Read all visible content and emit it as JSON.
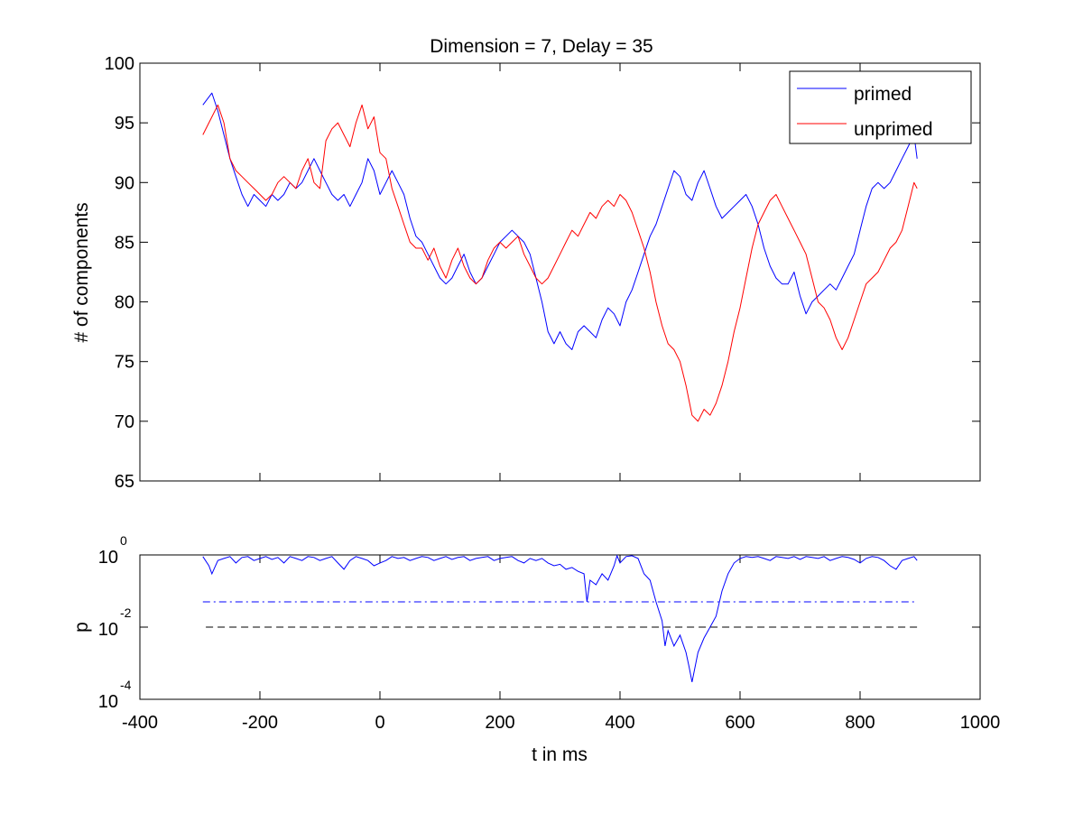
{
  "chart_data": [
    {
      "panel": "top",
      "type": "line",
      "title": "Dimension  = 7, Delay = 35",
      "xlabel": "",
      "ylabel": "# of components",
      "xlim": [
        -400,
        1000
      ],
      "ylim": [
        65,
        100
      ],
      "xticks": [
        -400,
        -200,
        0,
        200,
        400,
        600,
        800,
        1000
      ],
      "xtick_labels_visible": false,
      "yticks": [
        65,
        70,
        75,
        80,
        85,
        90,
        95,
        100
      ],
      "ytick_labels": [
        "65",
        "70",
        "75",
        "80",
        "85",
        "90",
        "95",
        "100"
      ],
      "grid": false,
      "legend_position": "top-right",
      "series": [
        {
          "name": "primed",
          "color": "#0000ff",
          "x": [
            -295,
            -280,
            -270,
            -260,
            -250,
            -240,
            -230,
            -220,
            -210,
            -200,
            -190,
            -180,
            -170,
            -160,
            -150,
            -140,
            -130,
            -120,
            -110,
            -100,
            -90,
            -80,
            -70,
            -60,
            -50,
            -40,
            -30,
            -20,
            -10,
            0,
            10,
            20,
            30,
            40,
            50,
            60,
            70,
            80,
            90,
            100,
            110,
            120,
            130,
            140,
            150,
            160,
            170,
            180,
            190,
            200,
            210,
            220,
            230,
            240,
            250,
            260,
            270,
            280,
            290,
            300,
            310,
            320,
            330,
            340,
            350,
            360,
            370,
            380,
            390,
            400,
            410,
            420,
            430,
            440,
            450,
            460,
            470,
            480,
            490,
            500,
            510,
            520,
            530,
            540,
            550,
            560,
            570,
            580,
            590,
            600,
            610,
            620,
            630,
            640,
            650,
            660,
            670,
            680,
            690,
            700,
            710,
            720,
            730,
            740,
            750,
            760,
            770,
            780,
            790,
            800,
            810,
            820,
            830,
            840,
            850,
            860,
            870,
            880,
            890,
            895
          ],
          "y": [
            96.5,
            97.5,
            96,
            94,
            92,
            90.5,
            89,
            88,
            89,
            88.5,
            88,
            89,
            88.5,
            89,
            90,
            89.5,
            90,
            91,
            92,
            91,
            90,
            89,
            88.5,
            89,
            88,
            89,
            90,
            92,
            91,
            89,
            90,
            91,
            90,
            89,
            87,
            85.5,
            85,
            84,
            83,
            82,
            81.5,
            82,
            83,
            84,
            82.5,
            81.5,
            82,
            83,
            84,
            85,
            85.5,
            86,
            85.5,
            85,
            84,
            82,
            80,
            77.5,
            76.5,
            77.5,
            76.5,
            76,
            77.5,
            78,
            77.5,
            77,
            78.5,
            79.5,
            79,
            78,
            80,
            81,
            82.5,
            84,
            85.5,
            86.5,
            88,
            89.5,
            91,
            90.5,
            89,
            88.5,
            90,
            91,
            89.5,
            88,
            87,
            87.5,
            88,
            88.5,
            89,
            88,
            86.5,
            84.5,
            83,
            82,
            81.5,
            81.5,
            82.5,
            80.5,
            79,
            80,
            80.5,
            81,
            81.5,
            81,
            82,
            83,
            84,
            86,
            88,
            89.5,
            90,
            89.5,
            90,
            91,
            92,
            93,
            94,
            92
          ]
        },
        {
          "name": "unprimed",
          "color": "#ff0000",
          "x": [
            -295,
            -280,
            -270,
            -260,
            -250,
            -240,
            -230,
            -220,
            -210,
            -200,
            -190,
            -180,
            -170,
            -160,
            -150,
            -140,
            -130,
            -120,
            -110,
            -100,
            -90,
            -80,
            -70,
            -60,
            -50,
            -40,
            -30,
            -20,
            -10,
            0,
            10,
            20,
            30,
            40,
            50,
            60,
            70,
            80,
            90,
            100,
            110,
            120,
            130,
            140,
            150,
            160,
            170,
            180,
            190,
            200,
            210,
            220,
            230,
            240,
            250,
            260,
            270,
            280,
            290,
            300,
            310,
            320,
            330,
            340,
            350,
            360,
            370,
            380,
            390,
            400,
            410,
            420,
            430,
            440,
            450,
            460,
            470,
            480,
            490,
            500,
            510,
            520,
            530,
            540,
            550,
            560,
            570,
            580,
            590,
            600,
            610,
            620,
            630,
            640,
            650,
            660,
            670,
            680,
            690,
            700,
            710,
            720,
            730,
            740,
            750,
            760,
            770,
            780,
            790,
            800,
            810,
            820,
            830,
            840,
            850,
            860,
            870,
            880,
            890,
            895
          ],
          "y": [
            94,
            95.5,
            96.5,
            95,
            92,
            91,
            90.5,
            90,
            89.5,
            89,
            88.5,
            89,
            90,
            90.5,
            90,
            89.5,
            91,
            92,
            90,
            89.5,
            93.5,
            94.5,
            95,
            94,
            93,
            95,
            96.5,
            94.5,
            95.5,
            92.5,
            92,
            89.5,
            88,
            86.5,
            85,
            84.5,
            84.5,
            83.5,
            84.5,
            83,
            82,
            83.5,
            84.5,
            83,
            82,
            81.5,
            82,
            83.5,
            84.5,
            85,
            84.5,
            85,
            85.5,
            84,
            83,
            82,
            81.5,
            82,
            83,
            84,
            85,
            86,
            85.5,
            86.5,
            87.5,
            87,
            88,
            88.5,
            88,
            89,
            88.5,
            87.5,
            86,
            84.5,
            82.5,
            80,
            78,
            76.5,
            76,
            75,
            73,
            70.5,
            70,
            71,
            70.5,
            71.5,
            73,
            75,
            77.5,
            79.5,
            82,
            84.5,
            86.5,
            87.5,
            88.5,
            89,
            88,
            87,
            86,
            85,
            84,
            82,
            80,
            79.5,
            78.5,
            77,
            76,
            77,
            78.5,
            80,
            81.5,
            82,
            82.5,
            83.5,
            84.5,
            85,
            86,
            88,
            90,
            89.5
          ]
        }
      ]
    },
    {
      "panel": "bottom",
      "type": "line",
      "title": "",
      "xlabel": "t in ms",
      "ylabel": "p",
      "yscale": "log",
      "xlim": [
        -400,
        1000
      ],
      "ylim": [
        0.0001,
        1
      ],
      "xticks": [
        -400,
        -200,
        0,
        200,
        400,
        600,
        800,
        1000
      ],
      "xtick_labels": [
        "-400",
        "-200",
        "0",
        "200",
        "400",
        "600",
        "800",
        "1000"
      ],
      "yticks": [
        0.0001,
        0.01,
        1
      ],
      "ytick_labels": [
        {
          "base": "10",
          "exp": "-4"
        },
        {
          "base": "10",
          "exp": "-2"
        },
        {
          "base": "10",
          "exp": "0"
        }
      ],
      "grid": false,
      "series": [
        {
          "color": "#0000ff",
          "x": [
            -295,
            -285,
            -280,
            -270,
            -260,
            -250,
            -240,
            -230,
            -220,
            -210,
            -200,
            -190,
            -180,
            -170,
            -160,
            -150,
            -140,
            -130,
            -120,
            -110,
            -100,
            -90,
            -80,
            -70,
            -60,
            -50,
            -40,
            -30,
            -20,
            -10,
            0,
            10,
            20,
            30,
            40,
            50,
            60,
            70,
            80,
            90,
            100,
            110,
            120,
            130,
            140,
            150,
            160,
            170,
            180,
            190,
            200,
            210,
            220,
            230,
            240,
            250,
            260,
            270,
            280,
            290,
            300,
            310,
            320,
            330,
            340,
            345,
            350,
            360,
            370,
            380,
            390,
            395,
            400,
            410,
            420,
            430,
            440,
            450,
            460,
            470,
            475,
            480,
            490,
            500,
            510,
            515,
            520,
            530,
            540,
            550,
            560,
            570,
            580,
            590,
            600,
            610,
            620,
            630,
            640,
            650,
            660,
            670,
            680,
            690,
            700,
            710,
            720,
            730,
            740,
            750,
            760,
            770,
            780,
            790,
            800,
            810,
            820,
            830,
            840,
            850,
            860,
            870,
            880,
            890,
            895
          ],
          "y": [
            0.9,
            0.5,
            0.3,
            0.7,
            0.8,
            0.9,
            0.6,
            0.85,
            0.9,
            0.7,
            0.8,
            0.9,
            0.75,
            0.85,
            0.6,
            0.9,
            0.8,
            0.7,
            0.9,
            0.85,
            0.7,
            0.8,
            0.9,
            0.6,
            0.4,
            0.7,
            0.9,
            0.8,
            0.7,
            0.5,
            0.6,
            0.7,
            0.9,
            0.8,
            0.85,
            0.7,
            0.8,
            0.9,
            0.85,
            0.7,
            0.8,
            0.9,
            0.75,
            0.85,
            0.9,
            0.7,
            0.8,
            0.85,
            0.9,
            0.7,
            0.8,
            0.85,
            0.9,
            0.7,
            0.6,
            0.8,
            0.7,
            0.8,
            0.6,
            0.5,
            0.55,
            0.4,
            0.45,
            0.35,
            0.3,
            0.05,
            0.2,
            0.15,
            0.3,
            0.2,
            0.5,
            0.95,
            0.6,
            0.9,
            0.95,
            0.8,
            0.3,
            0.2,
            0.05,
            0.015,
            0.003,
            0.008,
            0.003,
            0.006,
            0.002,
            0.0008,
            0.0003,
            0.002,
            0.005,
            0.01,
            0.02,
            0.1,
            0.3,
            0.6,
            0.8,
            0.9,
            0.85,
            0.9,
            0.8,
            0.7,
            0.9,
            0.85,
            0.8,
            0.9,
            0.75,
            0.9,
            0.85,
            0.8,
            0.9,
            0.7,
            0.8,
            0.9,
            0.85,
            0.75,
            0.6,
            0.8,
            0.9,
            0.85,
            0.7,
            0.5,
            0.4,
            0.7,
            0.8,
            0.9,
            0.7
          ]
        },
        {
          "color": "#0000ff",
          "line_style": "dash-dot",
          "x": [
            -295,
            895
          ],
          "y": [
            0.05,
            0.05
          ]
        },
        {
          "color": "#000000",
          "line_style": "dashed",
          "x": [
            -290,
            895
          ],
          "y": [
            0.01,
            0.01
          ]
        }
      ]
    }
  ]
}
